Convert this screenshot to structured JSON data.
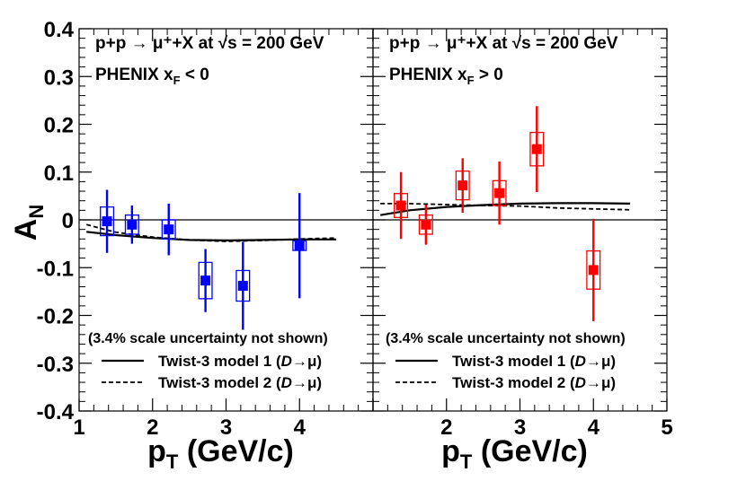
{
  "chart_data": {
    "type": "scatter",
    "ylabel": "A_N",
    "ylim": [
      -0.4,
      0.4
    ],
    "y_ticks": [
      {
        "value": 0.4,
        "label": "0.4"
      },
      {
        "value": 0.3,
        "label": "0.3"
      },
      {
        "value": 0.2,
        "label": "0.2"
      },
      {
        "value": 0.1,
        "label": "0.1"
      },
      {
        "value": 0,
        "label": "0"
      },
      {
        "value": -0.1,
        "label": "-0.1"
      },
      {
        "value": -0.2,
        "label": "-0.2"
      },
      {
        "value": -0.3,
        "label": "-0.3"
      },
      {
        "value": -0.4,
        "label": "-0.4"
      }
    ],
    "panels": [
      {
        "id": "left",
        "title_line1": "p+p → μ⁺+X at √s = 200 GeV",
        "experiment": "PHENIX",
        "xf_condition": "x",
        "xf_sub": "F",
        "xf_rest": " < 0",
        "note": "(3.4% scale uncertainty not shown)",
        "xlabel": "p",
        "xlabel_sub": "T",
        "xlabel_rest": " (GeV/c)",
        "xlim": [
          1,
          5
        ],
        "x_ticks": [
          {
            "value": 1,
            "label": "1"
          },
          {
            "value": 2,
            "label": "2"
          },
          {
            "value": 3,
            "label": "3"
          },
          {
            "value": 4,
            "label": "4"
          }
        ],
        "marker_color": "#0000ff",
        "points": [
          {
            "x": 1.38,
            "y": -0.003,
            "stat_err": 0.066,
            "sys_err": 0.03,
            "sys_halfwidth": 0.09
          },
          {
            "x": 1.72,
            "y": -0.01,
            "stat_err": 0.04,
            "sys_err": 0.02,
            "sys_halfwidth": 0.09
          },
          {
            "x": 2.22,
            "y": -0.02,
            "stat_err": 0.054,
            "sys_err": 0.02,
            "sys_halfwidth": 0.09
          },
          {
            "x": 2.72,
            "y": -0.127,
            "stat_err": 0.066,
            "sys_err": 0.038,
            "sys_halfwidth": 0.09
          },
          {
            "x": 3.23,
            "y": -0.138,
            "stat_err": 0.092,
            "sys_err": 0.032,
            "sys_halfwidth": 0.09
          },
          {
            "x": 4.0,
            "y": -0.054,
            "stat_err": 0.11,
            "sys_err": 0.01,
            "sys_halfwidth": 0.09
          }
        ],
        "curves": [
          {
            "name": "Twist-3 model 1 (D→μ)",
            "style": "solid",
            "x": [
              1.1,
              1.5,
              2.0,
              2.5,
              3.0,
              3.5,
              4.0,
              4.5
            ],
            "y": [
              -0.025,
              -0.032,
              -0.038,
              -0.042,
              -0.043,
              -0.042,
              -0.041,
              -0.041
            ]
          },
          {
            "name": "Twist-3 model 2 (D→μ)",
            "style": "dashed",
            "x": [
              1.1,
              1.5,
              2.0,
              2.5,
              3.0,
              3.5,
              4.0,
              4.5
            ],
            "y": [
              -0.01,
              -0.026,
              -0.036,
              -0.042,
              -0.045,
              -0.043,
              -0.04,
              -0.038
            ]
          }
        ],
        "legend": [
          {
            "label": "Twist-3 model 1 (",
            "italic": "D",
            "rest": "→μ)",
            "style": "solid"
          },
          {
            "label": "Twist-3 model 2 (",
            "italic": "D",
            "rest": "→μ)",
            "style": "dashed"
          }
        ]
      },
      {
        "id": "right",
        "title_line1": "p+p → μ⁺+X at √s = 200 GeV",
        "experiment": "PHENIX",
        "xf_condition": "x",
        "xf_sub": "F",
        "xf_rest": " > 0",
        "note": "(3.4% scale uncertainty not shown)",
        "xlabel": "p",
        "xlabel_sub": "T",
        "xlabel_rest": " (GeV/c)",
        "xlim": [
          1,
          5
        ],
        "x_ticks": [
          {
            "value": 2,
            "label": "2"
          },
          {
            "value": 3,
            "label": "3"
          },
          {
            "value": 4,
            "label": "4"
          },
          {
            "value": 5,
            "label": "5"
          }
        ],
        "marker_color": "#ff0000",
        "points": [
          {
            "x": 1.38,
            "y": 0.03,
            "stat_err": 0.07,
            "sys_err": 0.025,
            "sys_halfwidth": 0.09
          },
          {
            "x": 1.72,
            "y": -0.01,
            "stat_err": 0.042,
            "sys_err": 0.02,
            "sys_halfwidth": 0.09
          },
          {
            "x": 2.22,
            "y": 0.072,
            "stat_err": 0.057,
            "sys_err": 0.03,
            "sys_halfwidth": 0.09
          },
          {
            "x": 2.72,
            "y": 0.056,
            "stat_err": 0.066,
            "sys_err": 0.026,
            "sys_halfwidth": 0.09
          },
          {
            "x": 3.23,
            "y": 0.148,
            "stat_err": 0.09,
            "sys_err": 0.035,
            "sys_halfwidth": 0.09
          },
          {
            "x": 4.0,
            "y": -0.105,
            "stat_err": 0.107,
            "sys_err": 0.04,
            "sys_halfwidth": 0.09
          }
        ],
        "curves": [
          {
            "name": "Twist-3 model 1 (D→μ)",
            "style": "solid",
            "x": [
              1.1,
              1.5,
              2.0,
              2.5,
              3.0,
              3.5,
              4.0,
              4.5
            ],
            "y": [
              0.01,
              0.02,
              0.027,
              0.031,
              0.034,
              0.035,
              0.035,
              0.034
            ]
          },
          {
            "name": "Twist-3 model 2 (D→μ)",
            "style": "dashed",
            "x": [
              1.1,
              1.5,
              2.0,
              2.5,
              3.0,
              3.5,
              4.0,
              4.5
            ],
            "y": [
              0.034,
              0.034,
              0.032,
              0.03,
              0.029,
              0.025,
              0.023,
              0.021
            ]
          }
        ],
        "legend": [
          {
            "label": "Twist-3 model 1 (",
            "italic": "D",
            "rest": "→μ)",
            "style": "solid"
          },
          {
            "label": "Twist-3 model 2 (",
            "italic": "D",
            "rest": "→μ)",
            "style": "dashed"
          }
        ]
      }
    ]
  }
}
